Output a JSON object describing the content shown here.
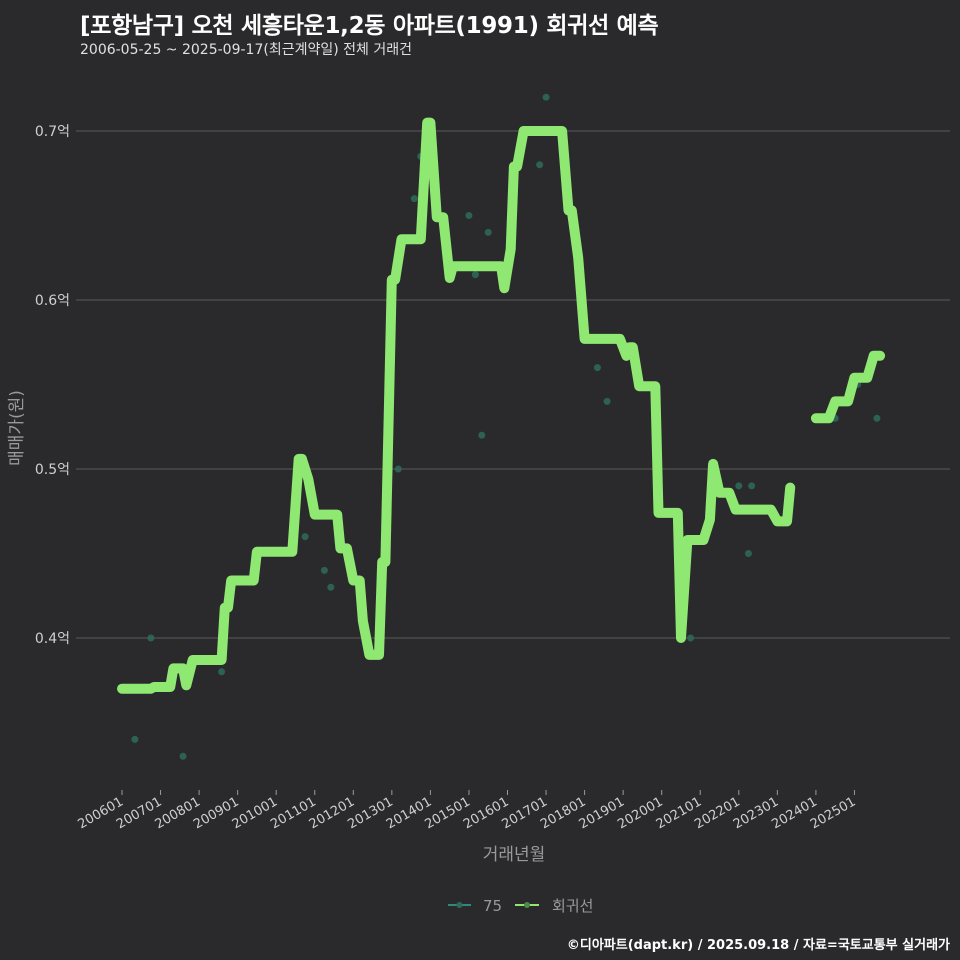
{
  "header": {
    "title": "[포항남구] 오천 세흥타운1,2동 아파트(1991) 회귀선 예측",
    "subtitle": "2006-05-25 ~ 2025-09-17(최근계약일) 전체 거래건"
  },
  "footer": "©디아파트(dapt.kr) / 2025.09.18 / 자료=국토교통부 실거래가",
  "colors": {
    "background": "#2a2a2c",
    "regression_line": "#8ee872",
    "scatter": "#2e6b5e",
    "grid": "#5a5a5a"
  },
  "chart_data": {
    "type": "line",
    "title": "[포항남구] 오천 세흥타운1,2동 아파트(1991) 회귀선 예측",
    "subtitle": "2006-05-25 ~ 2025-09-17(최근계약일) 전체 거래건",
    "xlabel": "거래년월",
    "ylabel": "매매가(원)",
    "y_ticks": [
      {
        "value": 0.4,
        "label": "0.4억"
      },
      {
        "value": 0.5,
        "label": "0.5억"
      },
      {
        "value": 0.6,
        "label": "0.6억"
      },
      {
        "value": 0.7,
        "label": "0.7억"
      }
    ],
    "ylim": [
      0.31,
      0.74
    ],
    "x_ticks": [
      "200601",
      "200701",
      "200801",
      "200901",
      "201001",
      "201101",
      "201201",
      "201301",
      "201401",
      "201501",
      "201601",
      "201701",
      "201801",
      "201901",
      "202001",
      "202101",
      "202201",
      "202301",
      "202401",
      "202501"
    ],
    "grid": true,
    "legend": {
      "position": "bottom",
      "entries": [
        "75",
        "회귀선"
      ]
    },
    "series": [
      {
        "name": "회귀선",
        "kind": "step-line",
        "points": [
          [
            "2006-01",
            0.37
          ],
          [
            "2006-10",
            0.37
          ],
          [
            "2006-11",
            0.371
          ],
          [
            "2007-04",
            0.371
          ],
          [
            "2007-05",
            0.382
          ],
          [
            "2007-08",
            0.382
          ],
          [
            "2007-09",
            0.372
          ],
          [
            "2007-11",
            0.387
          ],
          [
            "2008-08",
            0.387
          ],
          [
            "2008-09",
            0.418
          ],
          [
            "2008-10",
            0.418
          ],
          [
            "2008-11",
            0.434
          ],
          [
            "2009-06",
            0.434
          ],
          [
            "2009-07",
            0.451
          ],
          [
            "2010-06",
            0.451
          ],
          [
            "2010-08",
            0.506
          ],
          [
            "2010-09",
            0.506
          ],
          [
            "2010-11",
            0.494
          ],
          [
            "2011-01",
            0.473
          ],
          [
            "2011-08",
            0.473
          ],
          [
            "2011-09",
            0.453
          ],
          [
            "2011-11",
            0.453
          ],
          [
            "2012-01",
            0.434
          ],
          [
            "2012-03",
            0.434
          ],
          [
            "2012-04",
            0.41
          ],
          [
            "2012-06",
            0.39
          ],
          [
            "2012-09",
            0.39
          ],
          [
            "2012-10",
            0.445
          ],
          [
            "2012-11",
            0.445
          ],
          [
            "2013-01",
            0.612
          ],
          [
            "2013-02",
            0.612
          ],
          [
            "2013-04",
            0.636
          ],
          [
            "2013-10",
            0.636
          ],
          [
            "2013-12",
            0.705
          ],
          [
            "2014-01",
            0.705
          ],
          [
            "2014-03",
            0.649
          ],
          [
            "2014-05",
            0.649
          ],
          [
            "2014-07",
            0.613
          ],
          [
            "2014-08",
            0.62
          ],
          [
            "2015-11",
            0.62
          ],
          [
            "2015-12",
            0.607
          ],
          [
            "2016-02",
            0.63
          ],
          [
            "2016-03",
            0.679
          ],
          [
            "2016-04",
            0.679
          ],
          [
            "2016-06",
            0.7
          ],
          [
            "2017-06",
            0.7
          ],
          [
            "2017-08",
            0.653
          ],
          [
            "2017-09",
            0.653
          ],
          [
            "2017-11",
            0.625
          ],
          [
            "2018-01",
            0.577
          ],
          [
            "2018-12",
            0.577
          ],
          [
            "2019-02",
            0.567
          ],
          [
            "2019-03",
            0.572
          ],
          [
            "2019-04",
            0.572
          ],
          [
            "2019-06",
            0.549
          ],
          [
            "2019-11",
            0.549
          ],
          [
            "2019-12",
            0.474
          ],
          [
            "2020-06",
            0.474
          ],
          [
            "2020-07",
            0.4
          ],
          [
            "2020-09",
            0.458
          ],
          [
            "2021-02",
            0.458
          ],
          [
            "2021-04",
            0.47
          ],
          [
            "2021-05",
            0.503
          ],
          [
            "2021-07",
            0.486
          ],
          [
            "2021-10",
            0.486
          ],
          [
            "2021-12",
            0.476
          ],
          [
            "2022-11",
            0.476
          ],
          [
            "2023-01",
            0.469
          ],
          [
            "2023-04",
            0.469
          ],
          [
            "2023-05",
            0.489
          ]
        ]
      },
      {
        "name": "회귀선",
        "kind": "step-line-segment",
        "points": [
          [
            "2024-01",
            0.53
          ],
          [
            "2024-05",
            0.53
          ],
          [
            "2024-07",
            0.54
          ],
          [
            "2024-11",
            0.54
          ],
          [
            "2025-01",
            0.554
          ],
          [
            "2025-05",
            0.554
          ],
          [
            "2025-07",
            0.567
          ],
          [
            "2025-09",
            0.567
          ]
        ]
      },
      {
        "name": "75",
        "kind": "scatter",
        "points": [
          [
            "2006-05",
            0.34
          ],
          [
            "2006-10",
            0.4
          ],
          [
            "2007-08",
            0.33
          ],
          [
            "2008-08",
            0.38
          ],
          [
            "2010-10",
            0.46
          ],
          [
            "2011-04",
            0.44
          ],
          [
            "2011-06",
            0.43
          ],
          [
            "2013-03",
            0.5
          ],
          [
            "2013-08",
            0.66
          ],
          [
            "2013-10",
            0.685
          ],
          [
            "2015-01",
            0.65
          ],
          [
            "2015-05",
            0.52
          ],
          [
            "2015-03",
            0.615
          ],
          [
            "2015-07",
            0.64
          ],
          [
            "2016-11",
            0.68
          ],
          [
            "2017-01",
            0.72
          ],
          [
            "2018-05",
            0.56
          ],
          [
            "2018-08",
            0.54
          ],
          [
            "2020-10",
            0.4
          ],
          [
            "2021-04",
            0.47
          ],
          [
            "2022-01",
            0.49
          ],
          [
            "2022-05",
            0.49
          ],
          [
            "2022-04",
            0.45
          ],
          [
            "2024-07",
            0.53
          ],
          [
            "2025-02",
            0.55
          ],
          [
            "2025-08",
            0.53
          ]
        ]
      }
    ]
  }
}
